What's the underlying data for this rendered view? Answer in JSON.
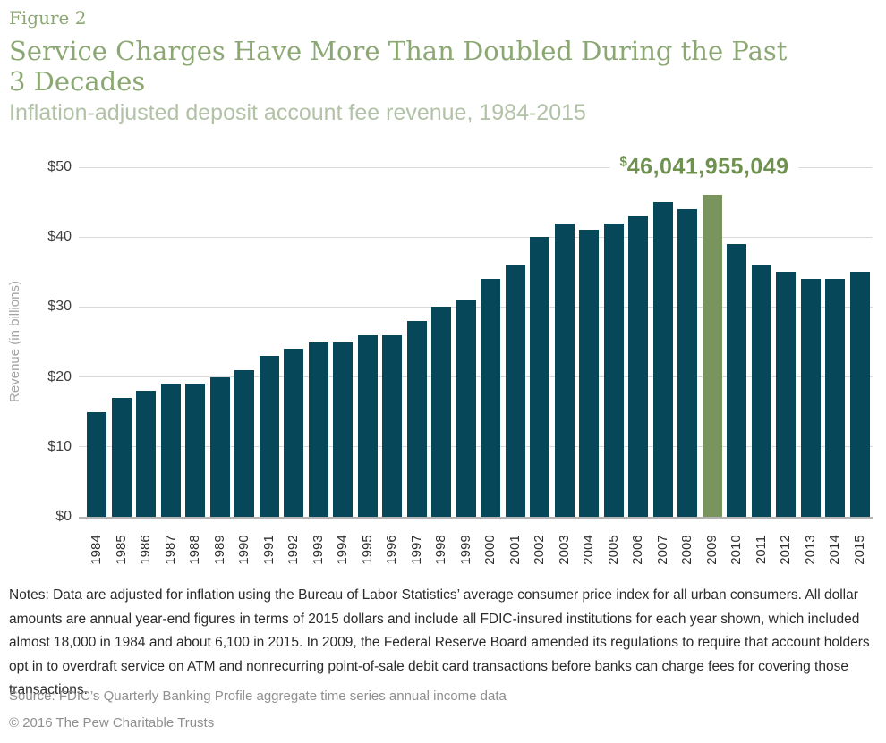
{
  "header": {
    "figure_label": "Figure 2",
    "title_lines": [
      "Service Charges Have More Than Doubled During the Past",
      "3 Decades"
    ],
    "subtitle": "Inflation-adjusted deposit account fee revenue, 1984-2015"
  },
  "chart_data": {
    "type": "bar",
    "title": "Service Charges Have More Than Doubled During the Past 3 Decades",
    "subtitle": "Inflation-adjusted deposit account fee revenue, 1984-2015",
    "xlabel": "",
    "ylabel": "Revenue (in billions)",
    "ylim": [
      0,
      50
    ],
    "grid": true,
    "legend": "none",
    "categories": [
      "1984",
      "1985",
      "1986",
      "1987",
      "1988",
      "1989",
      "1990",
      "1991",
      "1992",
      "1993",
      "1994",
      "1995",
      "1996",
      "1997",
      "1998",
      "1999",
      "2000",
      "2001",
      "2002",
      "2003",
      "2004",
      "2005",
      "2006",
      "2007",
      "2008",
      "2009",
      "2010",
      "2011",
      "2012",
      "2013",
      "2014",
      "2015"
    ],
    "values": [
      15,
      17,
      18,
      19,
      19,
      20,
      21,
      23,
      24,
      25,
      25,
      26,
      26,
      28,
      30,
      31,
      34,
      36,
      40,
      42,
      41,
      42,
      43,
      45,
      44,
      46.04,
      39,
      36,
      35,
      34,
      34,
      35
    ],
    "yticks": [
      {
        "value": 0,
        "label": "$0"
      },
      {
        "value": 10,
        "label": "$10"
      },
      {
        "value": 20,
        "label": "$20"
      },
      {
        "value": 30,
        "label": "$30"
      },
      {
        "value": 40,
        "label": "$40"
      },
      {
        "value": 50,
        "label": "$50"
      }
    ],
    "highlight": {
      "category": "2009",
      "exact_value_label": "46,041,955,049",
      "dollar_sign": "$"
    },
    "colors": {
      "bar": "#06485a",
      "highlight_bar": "#7a945e",
      "annotation_text": "#6e9150",
      "gridline": "#d9d9d9",
      "zero_axis": "#b3b3b3"
    }
  },
  "annotation": {
    "dollar": "$",
    "value": "46,041,955,049"
  },
  "footer": {
    "notes": "Notes: Data are adjusted for inflation using the Bureau of Labor Statistics’ average consumer price index for all urban consumers. All dollar amounts are annual year-end figures in terms of 2015 dollars and include all FDIC-insured institutions for each year shown, which included almost 18,000 in 1984 and about 6,100 in 2015. In 2009, the Federal Reserve Board amended its regulations to require that account holders opt in to overdraft service on ATM and nonrecurring point-of-sale debit card transactions before banks can charge fees for covering those transactions.",
    "source": "Source: FDIC’s Quarterly Banking Profile aggregate time series annual income data",
    "copyright": "© 2016 The Pew Charitable Trusts"
  }
}
